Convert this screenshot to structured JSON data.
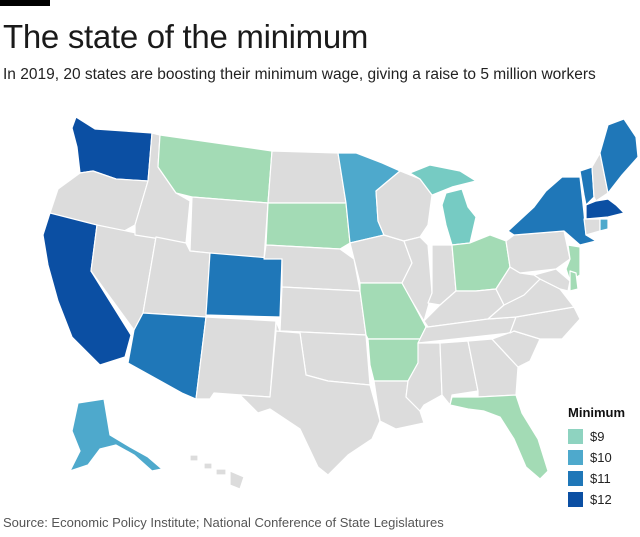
{
  "title": "The state of the minimum",
  "subtitle": "In 2019, 20 states are boosting their minimum wage, giving a raise to 5 million workers",
  "source": "Source: Economic Policy Institute; National Conference of State Legislatures",
  "colors": {
    "no_increase": "#dcdcdc",
    "tier_9": "#a3dbb5",
    "tier_10": "#4ea9cc",
    "tier_11": "#1f77b8",
    "tier_12": "#0b4fa3",
    "alt_9": "#76cbc3"
  },
  "legend": {
    "title": "Minimum",
    "items": [
      {
        "label": "$9",
        "color": "#8ed3c0"
      },
      {
        "label": "$10",
        "color": "#4ea9cc"
      },
      {
        "label": "$11",
        "color": "#1f77b8"
      },
      {
        "label": "$12",
        "color": "#0b4fa3"
      }
    ]
  },
  "map": {
    "raising_states": [
      {
        "name": "Washington",
        "tier": "$12"
      },
      {
        "name": "California",
        "tier": "$12"
      },
      {
        "name": "Massachusetts",
        "tier": "$12"
      },
      {
        "name": "Arizona",
        "tier": "$11"
      },
      {
        "name": "Colorado",
        "tier": "$11"
      },
      {
        "name": "New York",
        "tier": "$11"
      },
      {
        "name": "Maine",
        "tier": "$11"
      },
      {
        "name": "Vermont",
        "tier": "$11"
      },
      {
        "name": "Alaska",
        "tier": "$10"
      },
      {
        "name": "Minnesota",
        "tier": "$10"
      },
      {
        "name": "Michigan",
        "tier": "$9"
      },
      {
        "name": "South Dakota",
        "tier": "$9"
      },
      {
        "name": "Montana",
        "tier": "$9"
      },
      {
        "name": "Missouri",
        "tier": "$9"
      },
      {
        "name": "Arkansas",
        "tier": "$9"
      },
      {
        "name": "Ohio",
        "tier": "$9"
      },
      {
        "name": "Florida",
        "tier": "$9"
      },
      {
        "name": "New Jersey",
        "tier": "$9"
      },
      {
        "name": "Delaware",
        "tier": "$9"
      },
      {
        "name": "Rhode Island",
        "tier": "$10"
      }
    ]
  }
}
